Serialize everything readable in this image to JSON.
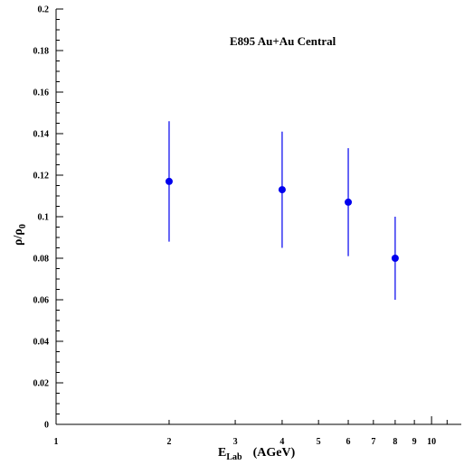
{
  "chart_data": {
    "type": "scatter",
    "title": "E895 Au+Au Central",
    "xlabel": {
      "main": "E",
      "sub": "Lab",
      "unit": "(AGeV)"
    },
    "ylabel": {
      "main": "ρ/ρ",
      "sub": "0"
    },
    "x_scale": "log",
    "xlim": [
      1,
      12
    ],
    "ylim": [
      0,
      0.2
    ],
    "grid": false,
    "x_tick_labels": [
      "1",
      "2",
      "3",
      "4",
      "5",
      "6",
      "7",
      "8",
      "9",
      "10"
    ],
    "y_tick_labels": [
      "0",
      "0.02",
      "0.04",
      "0.06",
      "0.08",
      "0.1",
      "0.12",
      "0.14",
      "0.16",
      "0.18",
      "0.2"
    ],
    "series": [
      {
        "points": [
          {
            "x": 2,
            "y": 0.117,
            "y_low": 0.088,
            "y_high": 0.146
          },
          {
            "x": 4,
            "y": 0.113,
            "y_low": 0.085,
            "y_high": 0.141
          },
          {
            "x": 6,
            "y": 0.107,
            "y_low": 0.081,
            "y_high": 0.133
          },
          {
            "x": 8,
            "y": 0.08,
            "y_low": 0.06,
            "y_high": 0.1
          }
        ]
      }
    ],
    "colors": {
      "marker": "#0000ee",
      "axis": "#000000"
    }
  }
}
